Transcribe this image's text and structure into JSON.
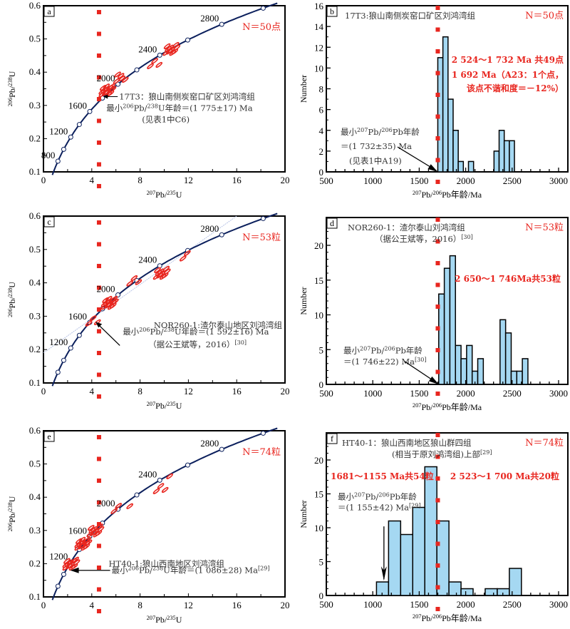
{
  "colors": {
    "concordia": "#0b1f5c",
    "ellipse": "#e8261f",
    "marker": "#e8261f",
    "bar_fill": "#a5d8f2",
    "bar_stroke": "#000000",
    "annotation_red": "#e8261f",
    "chord": "#b8c4e6"
  },
  "reference_line": {
    "label": "red dotted vertical reference line",
    "style": "dotted squares"
  },
  "chart_data": [
    {
      "id": "a",
      "type": "scatter",
      "panel_label": "a",
      "xlabel": "207Pb/235U",
      "ylabel": "206Pb/238U",
      "xlim": [
        0,
        20
      ],
      "ylim": [
        0.1,
        0.6
      ],
      "xticks": [
        0,
        4,
        8,
        12,
        16,
        20
      ],
      "yticks": [
        0.1,
        0.2,
        0.3,
        0.4,
        0.5,
        0.6
      ],
      "x_tick_labels": [
        "0",
        "4",
        "8",
        "12",
        "16",
        "20"
      ],
      "y_tick_labels": [
        "0.1",
        "0.2",
        "0.3",
        "0.4",
        "0.5",
        "0.6"
      ],
      "concordia_age_labels": [
        "800",
        "1200",
        "1600",
        "2000",
        "2400",
        "2800"
      ],
      "n_label": "N＝50点",
      "sample_label": "17T3：狼山南侧炭窑口矿区刘鸿湾组",
      "min_age_label": "最小206Pb/238U年龄＝(1 775±17) Ma",
      "source_note": "(见表1中C6)",
      "ellipse_clusters": [
        {
          "x": 5.3,
          "y": 0.345,
          "count": 14
        },
        {
          "x": 6.5,
          "y": 0.385,
          "count": 5
        },
        {
          "x": 9.3,
          "y": 0.43,
          "count": 3
        },
        {
          "x": 10.6,
          "y": 0.47,
          "count": 10
        }
      ],
      "reference_x": 4.6
    },
    {
      "id": "b",
      "type": "bar",
      "panel_label": "b",
      "title": "17T3:狼山南侧炭窑口矿区刘鸿湾组",
      "xlabel": "207Pb/206Pb年龄/Ma",
      "ylabel": "Number",
      "xlim": [
        500,
        3100
      ],
      "ylim": [
        0,
        16
      ],
      "xticks": [
        500,
        1000,
        1500,
        2000,
        2500,
        3000
      ],
      "yticks": [
        0,
        2,
        4,
        6,
        8,
        10,
        12,
        14,
        16
      ],
      "x_tick_labels": [
        "500",
        "1000",
        "1500",
        "2000",
        "2500",
        "3000"
      ],
      "y_tick_labels": [
        "0",
        "2",
        "4",
        "6",
        "8",
        "10",
        "12",
        "14",
        "16"
      ],
      "bins": [
        {
          "x0": 1700,
          "x1": 1755,
          "value": 11
        },
        {
          "x0": 1755,
          "x1": 1810,
          "value": 13
        },
        {
          "x0": 1810,
          "x1": 1865,
          "value": 7
        },
        {
          "x0": 1865,
          "x1": 1920,
          "value": 4
        },
        {
          "x0": 1920,
          "x1": 1975,
          "value": 1
        },
        {
          "x0": 2030,
          "x1": 2085,
          "value": 1
        },
        {
          "x0": 2305,
          "x1": 2360,
          "value": 2
        },
        {
          "x0": 2360,
          "x1": 2415,
          "value": 4
        },
        {
          "x0": 2415,
          "x1": 2470,
          "value": 3
        },
        {
          "x0": 2470,
          "x1": 2525,
          "value": 3
        }
      ],
      "n_label": "N＝50点",
      "annotations_red": [
        "2 524～1 732 Ma  共49点",
        "1 692 Ma（A23：1个点，",
        "该点不谐和度＝－12%）"
      ],
      "min_age_lines": [
        "最小207Pb/206Pb年龄",
        "＝(1 732±35) Ma",
        "(见表1中A19)"
      ],
      "arrow_target_x": 1700,
      "reference_x": 1700
    },
    {
      "id": "c",
      "type": "scatter",
      "panel_label": "c",
      "xlabel": "207Pb/235U",
      "ylabel": "206Pb/238U",
      "xlim": [
        0,
        20
      ],
      "ylim": [
        0.1,
        0.6
      ],
      "xticks": [
        0,
        4,
        8,
        12,
        16,
        20
      ],
      "yticks": [
        0.1,
        0.2,
        0.3,
        0.4,
        0.5,
        0.6
      ],
      "x_tick_labels": [
        "0",
        "4",
        "8",
        "12",
        "16",
        "20"
      ],
      "y_tick_labels": [
        "0.1",
        "0.2",
        "0.3",
        "0.4",
        "0.5",
        "0.6"
      ],
      "concordia_age_labels": [
        "1200",
        "1600",
        "2000",
        "2400",
        "2800"
      ],
      "n_label": "N＝53粒",
      "sample_label": "NOR260-1:渣尔泰山地区刘鸿湾组",
      "min_age_label": "最小206Pb/238U年龄＝(1 592±16) Ma",
      "source_note": "（据公王斌等，2016）[30]",
      "ellipse_clusters": [
        {
          "x": 4.2,
          "y": 0.29,
          "count": 3
        },
        {
          "x": 5.5,
          "y": 0.34,
          "count": 14
        },
        {
          "x": 7.6,
          "y": 0.41,
          "count": 3
        },
        {
          "x": 9.8,
          "y": 0.43,
          "count": 10
        },
        {
          "x": 12.0,
          "y": 0.485,
          "count": 2
        }
      ],
      "reference_x": 4.6
    },
    {
      "id": "d",
      "type": "bar",
      "panel_label": "d",
      "title": "NOR260-1：渣尔泰山刘鸿湾组",
      "subtitle": "（据公王斌等，2016）[30]",
      "xlabel": "207Pb/206Pb年龄/Ma",
      "ylabel": "Number",
      "xlim": [
        500,
        3100
      ],
      "ylim": [
        0,
        24
      ],
      "xticks": [
        500,
        1000,
        1500,
        2000,
        2500,
        3000
      ],
      "yticks": [
        0,
        5,
        10,
        15,
        20
      ],
      "x_tick_labels": [
        "500",
        "1000",
        "1500",
        "2000",
        "2500",
        "3000"
      ],
      "y_tick_labels": [
        "0",
        "5",
        "10",
        "15",
        "20"
      ],
      "bins": [
        {
          "x0": 1710,
          "x1": 1770,
          "value": 13
        },
        {
          "x0": 1770,
          "x1": 1830,
          "value": 16.7
        },
        {
          "x0": 1830,
          "x1": 1890,
          "value": 18.5
        },
        {
          "x0": 1890,
          "x1": 1950,
          "value": 5.6
        },
        {
          "x0": 1950,
          "x1": 2010,
          "value": 3.7
        },
        {
          "x0": 2010,
          "x1": 2070,
          "value": 5.6
        },
        {
          "x0": 2070,
          "x1": 2130,
          "value": 1.9
        },
        {
          "x0": 2130,
          "x1": 2190,
          "value": 3.7
        },
        {
          "x0": 2370,
          "x1": 2430,
          "value": 9.3
        },
        {
          "x0": 2430,
          "x1": 2490,
          "value": 7.4
        },
        {
          "x0": 2490,
          "x1": 2550,
          "value": 1.9
        },
        {
          "x0": 2550,
          "x1": 2610,
          "value": 1.9
        },
        {
          "x0": 2610,
          "x1": 2670,
          "value": 3.7
        }
      ],
      "n_label": "N＝53粒",
      "annotations_red": [
        "2 650～1 746Ma共53粒"
      ],
      "min_age_lines": [
        "最小207Pb/206Pb年龄",
        "＝(1 746±22) Ma[30]"
      ],
      "arrow_target_x": 1710,
      "reference_x": 1700
    },
    {
      "id": "e",
      "type": "scatter",
      "panel_label": "e",
      "xlabel": "207Pb/235U",
      "ylabel": "206Pb/238U",
      "xlim": [
        0,
        20
      ],
      "ylim": [
        0.1,
        0.6
      ],
      "xticks": [
        0,
        4,
        8,
        12,
        16,
        20
      ],
      "yticks": [
        0.1,
        0.2,
        0.3,
        0.4,
        0.5,
        0.6
      ],
      "x_tick_labels": [
        "0",
        "4",
        "8",
        "12",
        "16",
        "20"
      ],
      "y_tick_labels": [
        "0.1",
        "0.2",
        "0.3",
        "0.4",
        "0.5",
        "0.6"
      ],
      "concordia_age_labels": [
        "1200",
        "1600",
        "2000",
        "2400",
        "2800"
      ],
      "n_label": "N＝74粒",
      "sample_label": "HT40-1:狼山西南地区刘鸿湾组",
      "min_age_label": "最小206Pb/238U年龄＝(1 086±28) Ma[29]",
      "source_note": "",
      "ellipse_clusters": [
        {
          "x": 2.3,
          "y": 0.2,
          "count": 12
        },
        {
          "x": 3.3,
          "y": 0.26,
          "count": 14
        },
        {
          "x": 4.3,
          "y": 0.3,
          "count": 10
        },
        {
          "x": 6.3,
          "y": 0.37,
          "count": 2
        },
        {
          "x": 7.6,
          "y": 0.385,
          "count": 1
        },
        {
          "x": 9.8,
          "y": 0.43,
          "count": 3
        },
        {
          "x": 10.9,
          "y": 0.475,
          "count": 1
        }
      ],
      "reference_x": 4.6
    },
    {
      "id": "f",
      "type": "bar",
      "panel_label": "f",
      "title": "HT40-1：狼山西南地区狼山群四组",
      "subtitle": "(相当于原刘鸿湾组)上部[29]",
      "xlabel": "207Pb/206Pb年龄/Ma",
      "ylabel": "Number",
      "xlim": [
        500,
        3100
      ],
      "ylim": [
        0,
        24
      ],
      "xticks": [
        500,
        1000,
        1500,
        2000,
        2500,
        3000
      ],
      "yticks": [
        0,
        5,
        10,
        15,
        20
      ],
      "x_tick_labels": [
        "500",
        "1000",
        "1500",
        "2000",
        "2500",
        "3000"
      ],
      "y_tick_labels": [
        "0",
        "5",
        "10",
        "15",
        "20"
      ],
      "bins": [
        {
          "x0": 1040,
          "x1": 1170,
          "value": 2
        },
        {
          "x0": 1170,
          "x1": 1300,
          "value": 11
        },
        {
          "x0": 1300,
          "x1": 1430,
          "value": 9
        },
        {
          "x0": 1430,
          "x1": 1560,
          "value": 13
        },
        {
          "x0": 1560,
          "x1": 1690,
          "value": 19
        },
        {
          "x0": 1690,
          "x1": 1820,
          "value": 11
        },
        {
          "x0": 1820,
          "x1": 1950,
          "value": 2
        },
        {
          "x0": 1950,
          "x1": 2080,
          "value": 1
        },
        {
          "x0": 2210,
          "x1": 2340,
          "value": 1
        },
        {
          "x0": 2340,
          "x1": 2470,
          "value": 1
        },
        {
          "x0": 2470,
          "x1": 2600,
          "value": 4
        }
      ],
      "n_label": "N＝74粒",
      "annotations_red": [
        "1681～1155 Ma共54粒",
        "2 523～1 700 Ma共20粒"
      ],
      "min_age_lines": [
        "最小207Pb/206Pb年龄",
        "＝(1 155±42) Ma[29]"
      ],
      "arrow_target_x": 1120,
      "reference_x": 1700
    }
  ]
}
